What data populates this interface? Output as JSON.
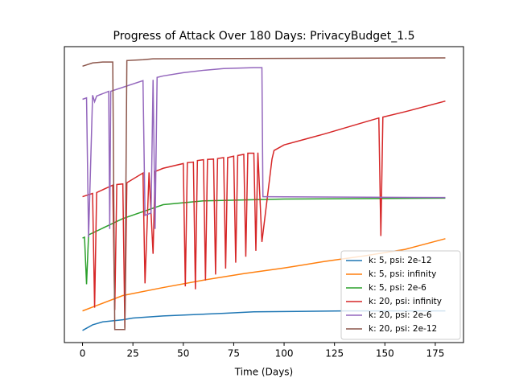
{
  "chart_data": {
    "type": "line",
    "title": "Progress of Attack Over 180 Days: PrivacyBudget_1.5",
    "xlabel": "Time (Days)",
    "xlim": [
      -9,
      189
    ],
    "xticks": [
      0,
      25,
      50,
      75,
      100,
      125,
      150,
      175
    ],
    "ylim": [
      0,
      100
    ],
    "legend": "lower right",
    "series": [
      {
        "name": "k: 5, psi: 2e-12",
        "color": "#1f77b4",
        "x": [
          0,
          5,
          10,
          20,
          25,
          40,
          70,
          85,
          130,
          180
        ],
        "values": [
          4.1,
          6,
          7,
          7.7,
          8.3,
          9,
          9.9,
          10.4,
          10.7,
          10.7
        ]
      },
      {
        "name": "k: 5, psi: infinity",
        "color": "#ff7f0e",
        "x": [
          0,
          20,
          40,
          60,
          80,
          100,
          120,
          140,
          160,
          180
        ],
        "values": [
          10.7,
          15.9,
          18.6,
          21.1,
          23.3,
          25.2,
          27.4,
          29.3,
          31.5,
          35.1
        ]
      },
      {
        "name": "k: 5, psi: 2e-6",
        "color": "#2ca02c",
        "x": [
          0,
          1,
          2,
          3,
          20,
          40,
          60,
          80,
          100,
          180
        ],
        "values": [
          35.3,
          35.6,
          19.7,
          36.4,
          41.9,
          46.6,
          47.9,
          48.2,
          48.5,
          48.8
        ]
      },
      {
        "name": "k: 20, psi: infinity",
        "color": "#d62728",
        "x": [
          0,
          5,
          6,
          7,
          15,
          16,
          17,
          20,
          21,
          22,
          30,
          31,
          33,
          35,
          36,
          40,
          50,
          51,
          52,
          55,
          56,
          57,
          60,
          61,
          62,
          65,
          66,
          67,
          70,
          71,
          72,
          75,
          76,
          77,
          80,
          81,
          82,
          85,
          86,
          87,
          89,
          94,
          95,
          100,
          120,
          140,
          147,
          148,
          149,
          160,
          180
        ],
        "values": [
          49.3,
          50.4,
          11.8,
          50.7,
          53.2,
          11,
          53.4,
          53.6,
          5,
          54,
          57.3,
          20,
          57.5,
          30,
          57.8,
          58.9,
          60.5,
          19,
          60.8,
          61,
          18,
          61.5,
          61.8,
          21,
          61.9,
          62,
          23,
          62.2,
          62.5,
          25,
          62.5,
          63,
          27,
          63.2,
          63.6,
          29,
          64,
          64,
          31,
          64.2,
          34,
          62,
          64.9,
          66.8,
          70.5,
          74.5,
          75.9,
          36,
          76.2,
          78,
          81.6
        ]
      },
      {
        "name": "k: 20, psi: 2e-6",
        "color": "#9467bd",
        "x": [
          0,
          2,
          3,
          5,
          6,
          7,
          13,
          13.5,
          14,
          30,
          31,
          34,
          35,
          36,
          37,
          40,
          50,
          60,
          70,
          85,
          89,
          89.5,
          90,
          180
        ],
        "values": [
          82.2,
          82.7,
          35.6,
          83.6,
          81.4,
          83.3,
          84.9,
          38.4,
          84.9,
          88.5,
          43,
          43.8,
          88.8,
          38.4,
          89.6,
          90.1,
          91.2,
          92,
          92.6,
          92.9,
          92.9,
          49.3,
          49.3,
          49
        ]
      },
      {
        "name": "k: 20, psi: 2e-12",
        "color": "#8c564b",
        "x": [
          0,
          5,
          10,
          15,
          16,
          21,
          22,
          30,
          35,
          180
        ],
        "values": [
          93.4,
          94.5,
          94.8,
          94.8,
          4.4,
          4.4,
          95.3,
          95.6,
          95.9,
          96.2
        ]
      }
    ]
  }
}
